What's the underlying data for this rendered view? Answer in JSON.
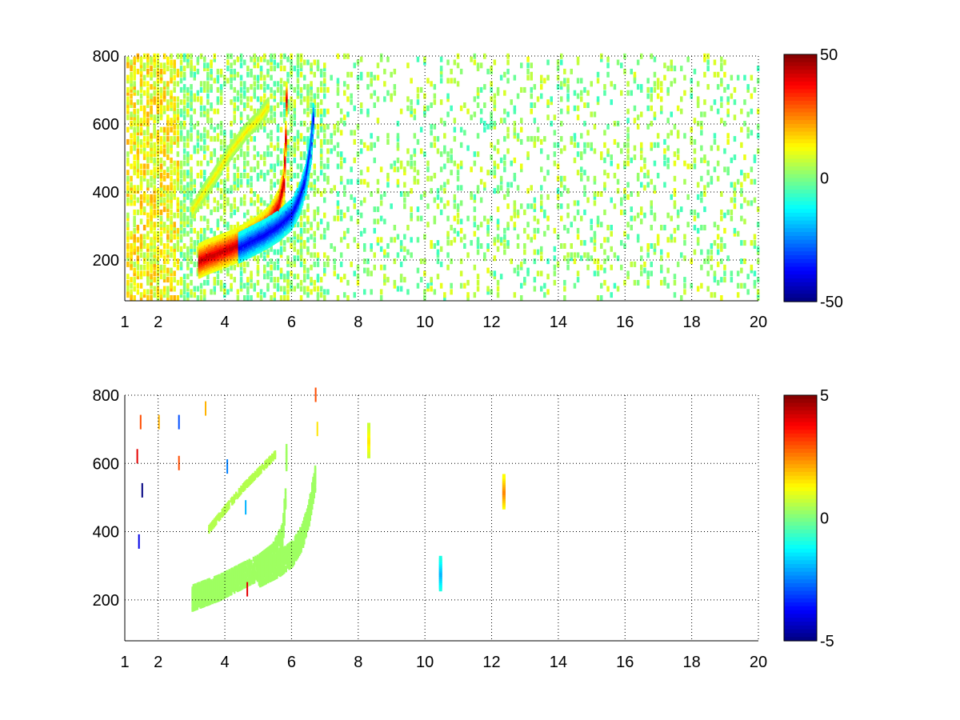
{
  "chart_data": [
    {
      "type": "heatmap",
      "title": "",
      "xlabel": "",
      "ylabel": "",
      "xlim": [
        1,
        20
      ],
      "ylim": [
        80,
        800
      ],
      "xticks": [
        1,
        2,
        4,
        6,
        8,
        10,
        12,
        14,
        16,
        18,
        20
      ],
      "xtick_labels": [
        "1",
        "2",
        "4",
        "6",
        "8",
        "10",
        "12",
        "14",
        "16",
        "18",
        "20"
      ],
      "yticks": [
        200,
        400,
        600,
        800
      ],
      "ytick_labels": [
        "200",
        "400",
        "600",
        "800"
      ],
      "grid": true,
      "colormap": "jet",
      "clim": [
        -50,
        50
      ],
      "colorbar_ticks": [
        50,
        0,
        -50
      ],
      "colorbar_labels": [
        "50",
        "0",
        "-50"
      ],
      "features": [
        {
          "name": "positive ridge",
          "x": [
            3.2,
            3.4,
            3.8,
            4.2,
            4.6,
            5.0,
            5.3,
            5.6,
            5.75,
            5.8,
            5.85
          ],
          "y": [
            190,
            200,
            215,
            230,
            250,
            275,
            300,
            350,
            420,
            550,
            780
          ],
          "value": 45
        },
        {
          "name": "negative ridge",
          "x": [
            4.4,
            4.8,
            5.2,
            5.6,
            6.0,
            6.2,
            6.4,
            6.55,
            6.65
          ],
          "y": [
            230,
            250,
            270,
            295,
            330,
            370,
            430,
            520,
            640
          ],
          "value": -40
        },
        {
          "name": "upper faint ridge",
          "x": [
            3.0,
            3.4,
            3.8,
            4.2,
            4.6,
            5.0,
            5.3
          ],
          "y": [
            340,
            400,
            460,
            520,
            570,
            610,
            650
          ],
          "value": 15
        }
      ]
    },
    {
      "type": "heatmap",
      "title": "",
      "xlabel": "",
      "ylabel": "",
      "xlim": [
        1,
        20
      ],
      "ylim": [
        80,
        800
      ],
      "xticks": [
        1,
        2,
        4,
        6,
        8,
        10,
        12,
        14,
        16,
        18,
        20
      ],
      "xtick_labels": [
        "1",
        "2",
        "4",
        "6",
        "8",
        "10",
        "12",
        "14",
        "16",
        "18",
        "20"
      ],
      "yticks": [
        200,
        400,
        600,
        800
      ],
      "ytick_labels": [
        "200",
        "400",
        "600",
        "800"
      ],
      "grid": true,
      "colormap": "jet",
      "clim": [
        -5,
        5
      ],
      "colorbar_ticks": [
        5,
        0,
        -5
      ],
      "colorbar_labels": [
        "5",
        "0",
        "-5"
      ],
      "features": [
        {
          "name": "main band",
          "x": [
            3.0,
            3.4,
            3.8,
            4.2,
            4.6,
            5.0,
            5.4,
            5.7,
            5.8,
            5.85
          ],
          "y": [
            200,
            215,
            230,
            250,
            270,
            290,
            320,
            380,
            500,
            780
          ],
          "value": 0.3
        },
        {
          "name": "secondary band",
          "x": [
            5.0,
            5.6,
            6.0,
            6.3,
            6.5,
            6.7
          ],
          "y": [
            270,
            300,
            330,
            380,
            450,
            560
          ],
          "value": 0.3
        },
        {
          "name": "upper trace",
          "x": [
            3.5,
            4.0,
            4.5,
            5.0,
            5.5
          ],
          "y": [
            400,
            460,
            520,
            570,
            620
          ],
          "value": 0.5
        },
        {
          "name": "blob near 12.3",
          "x": [
            12.35
          ],
          "y": [
            510
          ],
          "value": 2.5
        },
        {
          "name": "blob near 8.3",
          "x": [
            8.3
          ],
          "y": [
            660
          ],
          "value": 1.5
        },
        {
          "name": "blob near 10.5",
          "x": [
            10.45
          ],
          "y": [
            270
          ],
          "value": -2.0
        }
      ]
    }
  ]
}
